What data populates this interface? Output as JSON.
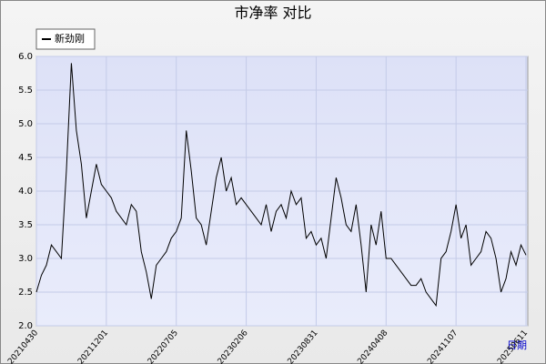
{
  "chart_data": {
    "type": "line",
    "title": "市净率  对比",
    "x_label": "日期",
    "categories": [
      "20210430",
      null,
      null,
      null,
      null,
      null,
      null,
      null,
      null,
      null,
      null,
      null,
      null,
      null,
      "20211201",
      null,
      null,
      null,
      null,
      null,
      null,
      null,
      null,
      null,
      null,
      null,
      null,
      null,
      "20220705",
      null,
      null,
      null,
      null,
      null,
      null,
      null,
      null,
      null,
      null,
      null,
      null,
      null,
      "20230206",
      null,
      null,
      null,
      null,
      null,
      null,
      null,
      null,
      null,
      null,
      null,
      null,
      null,
      "20230831",
      null,
      null,
      null,
      null,
      null,
      null,
      null,
      null,
      null,
      null,
      null,
      null,
      null,
      "20240408",
      null,
      null,
      null,
      null,
      null,
      null,
      null,
      null,
      null,
      null,
      null,
      null,
      null,
      "20241107",
      null,
      null,
      null,
      null,
      null,
      null,
      null,
      null,
      null,
      null,
      null,
      null,
      null,
      "20250611"
    ],
    "series": [
      {
        "name": "新劲刚",
        "color": "#000000",
        "values": [
          2.5,
          2.75,
          2.9,
          3.2,
          3.1,
          3.0,
          4.3,
          5.9,
          4.9,
          4.4,
          3.6,
          4.0,
          4.4,
          4.1,
          4.0,
          3.9,
          3.7,
          3.6,
          3.5,
          3.8,
          3.7,
          3.1,
          2.8,
          2.4,
          2.9,
          3.0,
          3.1,
          3.3,
          3.4,
          3.6,
          4.9,
          4.3,
          3.6,
          3.5,
          3.2,
          3.7,
          4.2,
          4.5,
          4.0,
          4.2,
          3.8,
          3.9,
          3.8,
          3.7,
          3.6,
          3.5,
          3.8,
          3.4,
          3.7,
          3.8,
          3.6,
          4.0,
          3.8,
          3.9,
          3.3,
          3.4,
          3.2,
          3.3,
          3.0,
          3.6,
          4.2,
          3.9,
          3.5,
          3.4,
          3.8,
          3.2,
          2.5,
          3.5,
          3.2,
          3.7,
          3.0,
          3.0,
          2.9,
          2.8,
          2.7,
          2.6,
          2.6,
          2.7,
          2.5,
          2.4,
          2.3,
          3.0,
          3.1,
          3.4,
          3.8,
          3.3,
          3.5,
          2.9,
          3.0,
          3.1,
          3.4,
          3.3,
          3.0,
          2.5,
          2.7,
          3.1,
          2.9,
          3.2,
          3.05
        ]
      }
    ],
    "ylim": [
      2.0,
      6.0
    ],
    "yticks": [
      {
        "value": 2,
        "label": "2.0"
      },
      2.5,
      {
        "value": 3,
        "label": "3.0"
      },
      3.5,
      {
        "value": 4,
        "label": "4.0"
      },
      4.5,
      {
        "value": 5,
        "label": "5.0"
      },
      5.5,
      {
        "value": 6,
        "label": "6.0"
      }
    ],
    "grid": true,
    "legend": "top-left"
  }
}
